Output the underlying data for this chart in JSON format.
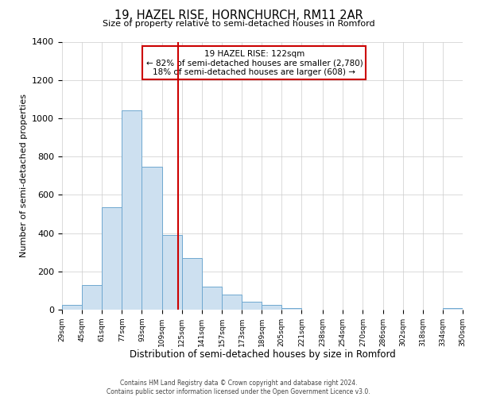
{
  "title": "19, HAZEL RISE, HORNCHURCH, RM11 2AR",
  "subtitle": "Size of property relative to semi-detached houses in Romford",
  "xlabel": "Distribution of semi-detached houses by size in Romford",
  "ylabel": "Number of semi-detached properties",
  "footnote1": "Contains HM Land Registry data © Crown copyright and database right 2024.",
  "footnote2": "Contains public sector information licensed under the Open Government Licence v3.0.",
  "bin_edges": [
    29,
    45,
    61,
    77,
    93,
    109,
    125,
    141,
    157,
    173,
    189,
    205,
    221,
    238,
    254,
    270,
    286,
    302,
    318,
    334,
    350
  ],
  "bin_labels": [
    "29sqm",
    "45sqm",
    "61sqm",
    "77sqm",
    "93sqm",
    "109sqm",
    "125sqm",
    "141sqm",
    "157sqm",
    "173sqm",
    "189sqm",
    "205sqm",
    "221sqm",
    "238sqm",
    "254sqm",
    "270sqm",
    "286sqm",
    "302sqm",
    "318sqm",
    "334sqm",
    "350sqm"
  ],
  "counts": [
    25,
    130,
    535,
    1040,
    745,
    390,
    270,
    120,
    80,
    40,
    25,
    10,
    0,
    0,
    0,
    0,
    0,
    0,
    0,
    10
  ],
  "bar_color": "#cde0f0",
  "bar_edge_color": "#6fa8d0",
  "grid_color": "#cccccc",
  "property_line_x": 122,
  "property_line_color": "#cc0000",
  "annotation_title": "19 HAZEL RISE: 122sqm",
  "annotation_line1": "← 82% of semi-detached houses are smaller (2,780)",
  "annotation_line2": "18% of semi-detached houses are larger (608) →",
  "annotation_box_color": "#ffffff",
  "annotation_box_edge": "#cc0000",
  "ylim": [
    0,
    1400
  ],
  "yticks": [
    0,
    200,
    400,
    600,
    800,
    1000,
    1200,
    1400
  ]
}
